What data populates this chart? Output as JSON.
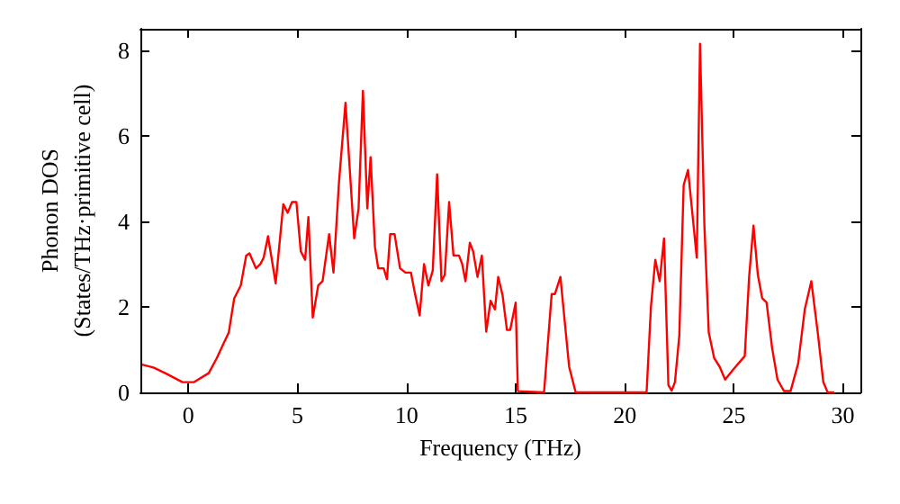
{
  "chart_data": {
    "type": "line",
    "xlabel": "Frequency (THz)",
    "ylabel": "Phonon DOS\n(States/THz·primitive cell)",
    "xlim": [
      -2.2,
      30.8
    ],
    "xticks": [
      0,
      5,
      10,
      15,
      20,
      25,
      30
    ],
    "ylim": [
      0,
      8.5
    ],
    "yticks": [
      0,
      2,
      4,
      6,
      8
    ],
    "grid": false,
    "marker": "none",
    "line_style": "solid",
    "x": [
      -2.12,
      -1.6,
      -1.06,
      -0.27,
      0.26,
      0.93,
      1.3,
      1.6,
      1.85,
      2.1,
      2.4,
      2.65,
      2.8,
      3.1,
      3.3,
      3.45,
      3.65,
      4.0,
      4.35,
      4.55,
      4.75,
      4.95,
      5.15,
      5.35,
      5.5,
      5.7,
      5.95,
      6.15,
      6.45,
      6.65,
      6.9,
      7.2,
      7.6,
      7.8,
      8.0,
      8.2,
      8.35,
      8.55,
      8.7,
      8.95,
      9.1,
      9.25,
      9.45,
      9.7,
      9.95,
      10.2,
      10.4,
      10.6,
      10.8,
      11.0,
      11.2,
      11.4,
      11.6,
      11.75,
      11.95,
      12.15,
      12.4,
      12.55,
      12.7,
      12.9,
      13.05,
      13.25,
      13.45,
      13.65,
      13.85,
      14.05,
      14.2,
      14.4,
      14.6,
      14.75,
      15.0,
      15.1,
      16.3,
      16.65,
      16.8,
      17.05,
      17.45,
      17.75,
      21.0,
      21.2,
      21.4,
      21.6,
      21.8,
      22.0,
      22.15,
      22.3,
      22.5,
      22.7,
      22.9,
      23.3,
      23.45,
      23.65,
      23.85,
      24.1,
      24.35,
      24.6,
      25.0,
      25.5,
      25.7,
      25.9,
      26.1,
      26.3,
      26.5,
      26.75,
      27.0,
      27.3,
      27.6,
      27.95,
      28.25,
      28.55,
      28.85,
      29.1,
      29.3,
      29.6
    ],
    "series": [
      {
        "color": "#ff0000",
        "values": [
          0.65,
          0.58,
          0.45,
          0.24,
          0.24,
          0.45,
          0.8,
          1.13,
          1.4,
          2.2,
          2.5,
          3.2,
          3.25,
          2.9,
          3.0,
          3.15,
          3.65,
          2.55,
          4.4,
          4.2,
          4.45,
          4.45,
          3.3,
          3.1,
          4.1,
          1.75,
          2.5,
          2.6,
          3.7,
          2.8,
          4.9,
          6.77,
          3.6,
          4.3,
          7.05,
          4.3,
          5.5,
          3.4,
          2.9,
          2.9,
          2.65,
          3.7,
          3.7,
          2.9,
          2.8,
          2.8,
          2.27,
          1.8,
          3.0,
          2.5,
          2.85,
          5.1,
          2.6,
          2.75,
          4.45,
          3.2,
          3.2,
          3.0,
          2.6,
          3.5,
          3.3,
          2.7,
          3.2,
          1.42,
          2.14,
          1.94,
          2.7,
          2.27,
          1.46,
          1.46,
          2.1,
          0.03,
          0,
          2.3,
          2.3,
          2.7,
          0.6,
          0,
          0,
          2.0,
          3.1,
          2.6,
          3.6,
          0.17,
          0.04,
          0.24,
          1.33,
          4.85,
          5.2,
          3.15,
          8.15,
          3.9,
          1.4,
          0.8,
          0.6,
          0.3,
          0.55,
          0.85,
          2.7,
          3.9,
          2.75,
          2.2,
          2.1,
          1.05,
          0.3,
          0.03,
          0.03,
          0.68,
          1.94,
          2.6,
          1.38,
          0.24,
          0,
          0
        ]
      }
    ]
  }
}
